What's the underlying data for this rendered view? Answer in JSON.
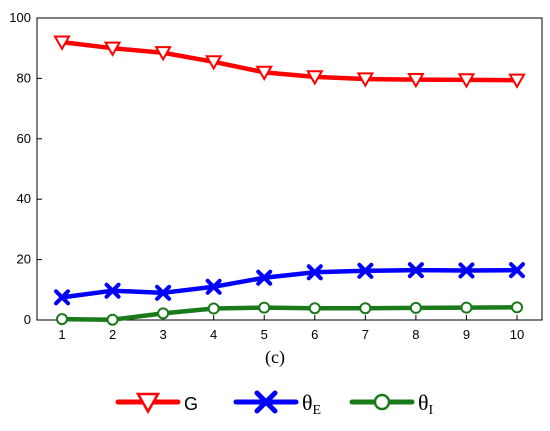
{
  "chart_data": {
    "type": "line",
    "panel_label": "(c)",
    "categories": [
      "1",
      "2",
      "3",
      "4",
      "5",
      "6",
      "7",
      "8",
      "9",
      "10"
    ],
    "x": [
      1,
      2,
      3,
      4,
      5,
      6,
      7,
      8,
      9,
      10
    ],
    "ylim": [
      0,
      100
    ],
    "yticks": [
      0,
      20,
      40,
      60,
      80,
      100
    ],
    "grid": false,
    "legend_position": "bottom",
    "series": [
      {
        "name": "G",
        "color": "#ff0000",
        "marker": "triangle-down-open",
        "values": [
          92,
          90,
          88.5,
          85.5,
          82,
          80.5,
          79.8,
          79.6,
          79.5,
          79.4
        ]
      },
      {
        "name": "θE",
        "name_base": "θ",
        "name_sub": "E",
        "color": "#0000ff",
        "marker": "x-cross",
        "values": [
          7.5,
          9.7,
          9,
          11,
          14,
          15.8,
          16.3,
          16.5,
          16.4,
          16.5
        ]
      },
      {
        "name": "θI",
        "name_base": "θ",
        "name_sub": "I",
        "color": "#1a7a1a",
        "marker": "circle-open",
        "values": [
          0.3,
          0.1,
          2.2,
          3.8,
          4.1,
          3.9,
          3.9,
          4.0,
          4.1,
          4.2
        ]
      }
    ]
  }
}
